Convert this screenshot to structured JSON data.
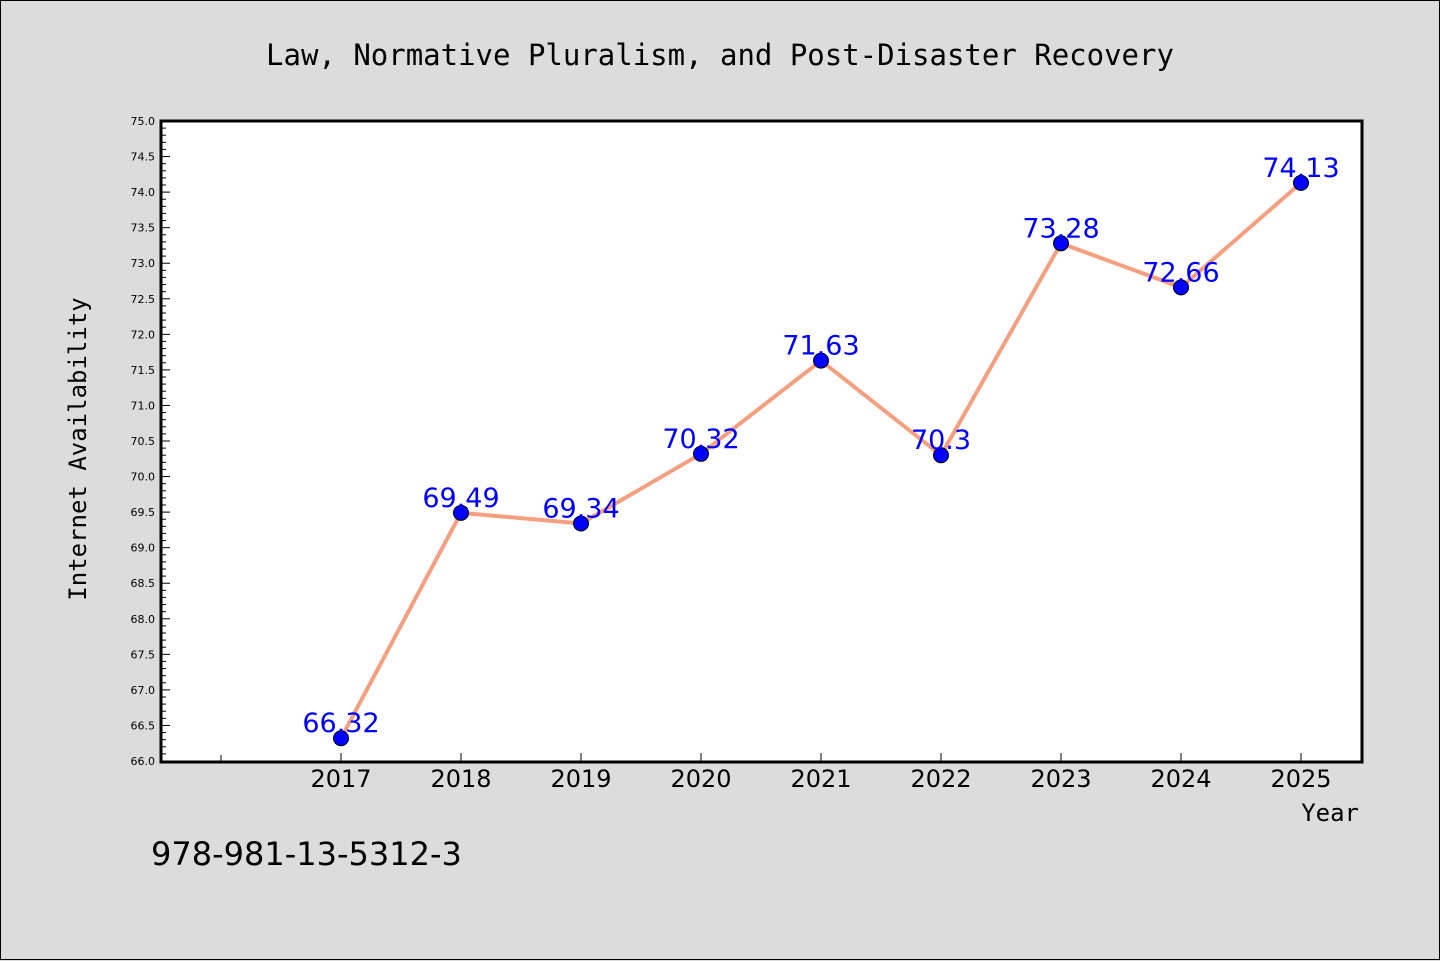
{
  "chart_data": {
    "type": "line",
    "title": "Law, Normative Pluralism, and Post-Disaster Recovery",
    "xlabel": "Year",
    "ylabel": "Internet Availability",
    "x": [
      "2017",
      "2018",
      "2019",
      "2020",
      "2021",
      "2022",
      "2023",
      "2024",
      "2025"
    ],
    "series": [
      {
        "values": [
          66.32,
          69.49,
          69.34,
          70.32,
          71.63,
          70.3,
          73.28,
          72.66,
          74.13
        ],
        "labels": [
          "66.32",
          "69.49",
          "69.34",
          "70.32",
          "71.63",
          "70.3",
          "73.28",
          "72.66",
          "74.13"
        ],
        "line_color": "#f4a080",
        "marker_color": "#0000ff"
      }
    ],
    "ylim": [
      66.0,
      75.0
    ],
    "yticks": [
      "66.0",
      "66.5",
      "67.0",
      "67.5",
      "68.0",
      "68.5",
      "69.0",
      "69.5",
      "70.0",
      "70.5",
      "71.0",
      "71.5",
      "72.0",
      "72.5",
      "73.0",
      "73.5",
      "74.0",
      "74.5",
      "75.0"
    ],
    "grid": false,
    "legend": "none"
  },
  "footer": {
    "isbn": "978-981-13-5312-3"
  }
}
